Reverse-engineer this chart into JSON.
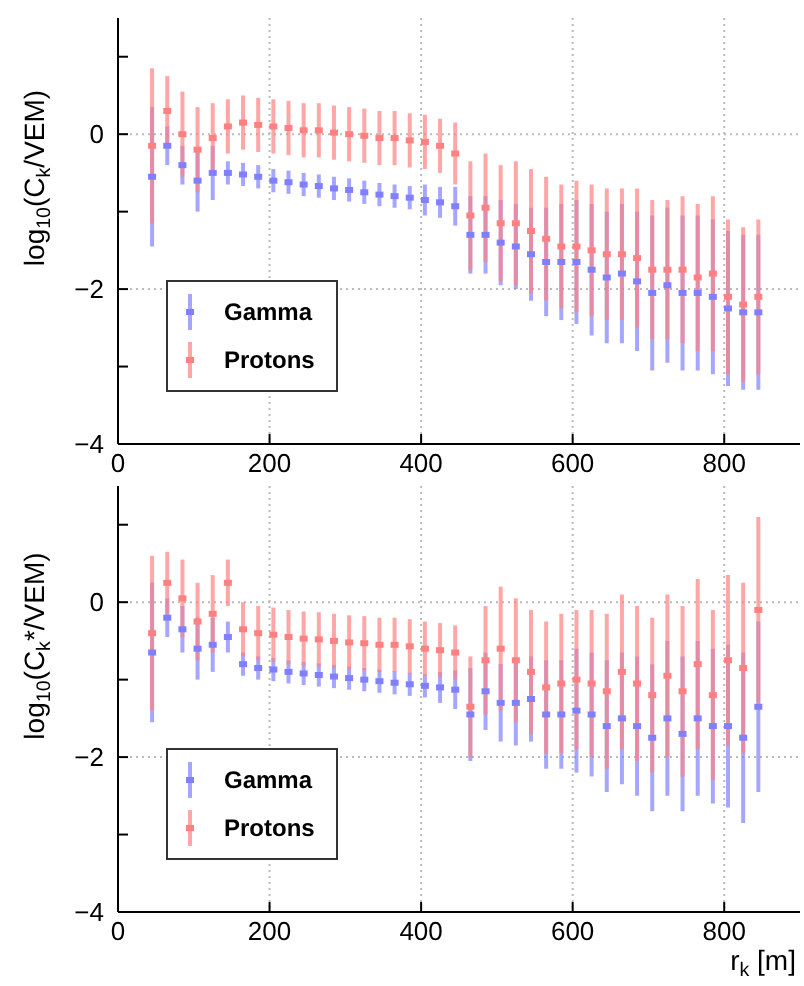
{
  "chart_data": [
    {
      "type": "scatter",
      "ylabel": "log$_{10}$(C$_{k}$/VEM)",
      "x": [
        45,
        65,
        85,
        105,
        125,
        145,
        165,
        185,
        205,
        225,
        245,
        265,
        285,
        305,
        325,
        345,
        365,
        385,
        405,
        425,
        445,
        465,
        485,
        505,
        525,
        545,
        565,
        585,
        605,
        625,
        645,
        665,
        685,
        705,
        725,
        745,
        765,
        785,
        805,
        825,
        845
      ],
      "xlim": [
        0,
        900
      ],
      "xticks": [
        0,
        200,
        400,
        600,
        800
      ],
      "ylim": [
        -4,
        1.5
      ],
      "yticks": [
        {
          "value": -4,
          "label": "−4"
        },
        {
          "value": -3,
          "label": null
        },
        {
          "value": -2,
          "label": "−2"
        },
        {
          "value": -1,
          "label": null
        },
        0,
        {
          "value": 1,
          "label": null
        }
      ],
      "grid": true,
      "legend": "bottom left",
      "marker": "square",
      "series": [
        {
          "name": "Gamma",
          "color": "#8080ff",
          "values": [
            -0.55,
            -0.15,
            -0.4,
            -0.6,
            -0.5,
            -0.5,
            -0.52,
            -0.55,
            -0.6,
            -0.62,
            -0.65,
            -0.67,
            -0.7,
            -0.72,
            -0.75,
            -0.78,
            -0.8,
            -0.82,
            -0.85,
            -0.88,
            -0.93,
            -1.3,
            -1.3,
            -1.4,
            -1.45,
            -1.55,
            -1.65,
            -1.65,
            -1.65,
            -1.75,
            -1.85,
            -1.8,
            -1.9,
            -2.05,
            -1.95,
            -2.05,
            -2.05,
            -2.1,
            -2.25,
            -2.3,
            -2.3
          ],
          "errors": [
            0.9,
            0.25,
            0.25,
            0.4,
            0.35,
            0.15,
            0.15,
            0.15,
            0.15,
            0.15,
            0.15,
            0.15,
            0.15,
            0.15,
            0.15,
            0.15,
            0.15,
            0.15,
            0.2,
            0.2,
            0.25,
            0.5,
            0.5,
            0.55,
            0.55,
            0.6,
            0.7,
            0.75,
            0.8,
            0.85,
            0.85,
            0.9,
            0.9,
            1.0,
            1.0,
            1.0,
            1.0,
            1.0,
            1.0,
            1.0,
            1.0
          ]
        },
        {
          "name": "Protons",
          "color": "#ff8080",
          "values": [
            -0.15,
            0.3,
            0.0,
            -0.2,
            -0.05,
            0.1,
            0.15,
            0.12,
            0.1,
            0.08,
            0.05,
            0.05,
            0.02,
            0.0,
            -0.02,
            -0.05,
            -0.05,
            -0.08,
            -0.1,
            -0.15,
            -0.25,
            -1.05,
            -0.95,
            -1.15,
            -1.15,
            -1.25,
            -1.35,
            -1.45,
            -1.45,
            -1.5,
            -1.55,
            -1.55,
            -1.6,
            -1.75,
            -1.75,
            -1.75,
            -1.85,
            -1.8,
            -2.1,
            -2.2,
            -2.1
          ],
          "errors": [
            1.0,
            0.45,
            0.55,
            0.55,
            0.45,
            0.35,
            0.35,
            0.35,
            0.35,
            0.35,
            0.35,
            0.35,
            0.35,
            0.35,
            0.35,
            0.35,
            0.35,
            0.35,
            0.35,
            0.35,
            0.4,
            0.7,
            0.7,
            0.75,
            0.8,
            0.8,
            0.8,
            0.8,
            0.85,
            0.85,
            0.85,
            0.85,
            0.9,
            0.9,
            0.9,
            0.95,
            0.95,
            1.0,
            1.0,
            1.0,
            1.0
          ]
        }
      ]
    },
    {
      "type": "scatter",
      "ylabel": "log$_{10}$(C$_{k}$*/VEM)",
      "xlabel": "r$_{k}$ [m]",
      "x": [
        45,
        65,
        85,
        105,
        125,
        145,
        165,
        185,
        205,
        225,
        245,
        265,
        285,
        305,
        325,
        345,
        365,
        385,
        405,
        425,
        445,
        465,
        485,
        505,
        525,
        545,
        565,
        585,
        605,
        625,
        645,
        665,
        685,
        705,
        725,
        745,
        765,
        785,
        805,
        825,
        845
      ],
      "xlim": [
        0,
        900
      ],
      "xticks": [
        0,
        200,
        400,
        600,
        800
      ],
      "ylim": [
        -4,
        1.5
      ],
      "yticks": [
        {
          "value": -4,
          "label": "−4"
        },
        {
          "value": -3,
          "label": null
        },
        {
          "value": -2,
          "label": "−2"
        },
        {
          "value": -1,
          "label": null
        },
        0,
        {
          "value": 1,
          "label": null
        }
      ],
      "grid": true,
      "legend": "bottom left",
      "marker": "square",
      "series": [
        {
          "name": "Gamma",
          "color": "#8080ff",
          "values": [
            -0.65,
            -0.2,
            -0.35,
            -0.6,
            -0.55,
            -0.45,
            -0.8,
            -0.85,
            -0.87,
            -0.9,
            -0.92,
            -0.94,
            -0.96,
            -0.98,
            -1.0,
            -1.02,
            -1.04,
            -1.06,
            -1.08,
            -1.1,
            -1.13,
            -1.45,
            -1.15,
            -1.3,
            -1.3,
            -1.25,
            -1.45,
            -1.45,
            -1.4,
            -1.45,
            -1.6,
            -1.5,
            -1.6,
            -1.75,
            -1.5,
            -1.7,
            -1.5,
            -1.6,
            -1.6,
            -1.75,
            -1.35
          ],
          "errors": [
            0.9,
            0.25,
            0.3,
            0.4,
            0.35,
            0.2,
            0.15,
            0.15,
            0.15,
            0.15,
            0.15,
            0.15,
            0.15,
            0.15,
            0.15,
            0.15,
            0.15,
            0.15,
            0.15,
            0.2,
            0.25,
            0.6,
            0.5,
            0.5,
            0.55,
            0.55,
            0.7,
            0.7,
            0.8,
            0.8,
            0.85,
            0.85,
            0.9,
            0.95,
            1.0,
            1.0,
            1.0,
            1.0,
            1.05,
            1.1,
            1.1
          ]
        },
        {
          "name": "Protons",
          "color": "#ff8080",
          "values": [
            -0.4,
            0.25,
            0.05,
            -0.25,
            -0.15,
            0.25,
            -0.35,
            -0.4,
            -0.42,
            -0.45,
            -0.47,
            -0.48,
            -0.5,
            -0.52,
            -0.53,
            -0.55,
            -0.55,
            -0.57,
            -0.6,
            -0.62,
            -0.65,
            -1.35,
            -0.75,
            -0.6,
            -0.75,
            -0.9,
            -1.1,
            -1.05,
            -1.0,
            -1.05,
            -1.15,
            -0.9,
            -1.05,
            -1.2,
            -0.95,
            -1.15,
            -0.8,
            -1.2,
            -0.75,
            -0.85,
            -0.1
          ],
          "errors": [
            1.0,
            0.4,
            0.5,
            0.5,
            0.5,
            0.3,
            0.35,
            0.35,
            0.35,
            0.35,
            0.35,
            0.35,
            0.35,
            0.35,
            0.35,
            0.35,
            0.35,
            0.35,
            0.35,
            0.35,
            0.35,
            0.65,
            0.7,
            0.8,
            0.8,
            0.8,
            0.85,
            0.9,
            0.9,
            0.95,
            1.0,
            1.0,
            1.0,
            1.0,
            1.05,
            1.1,
            1.1,
            1.1,
            1.1,
            1.1,
            1.2
          ]
        }
      ]
    }
  ]
}
